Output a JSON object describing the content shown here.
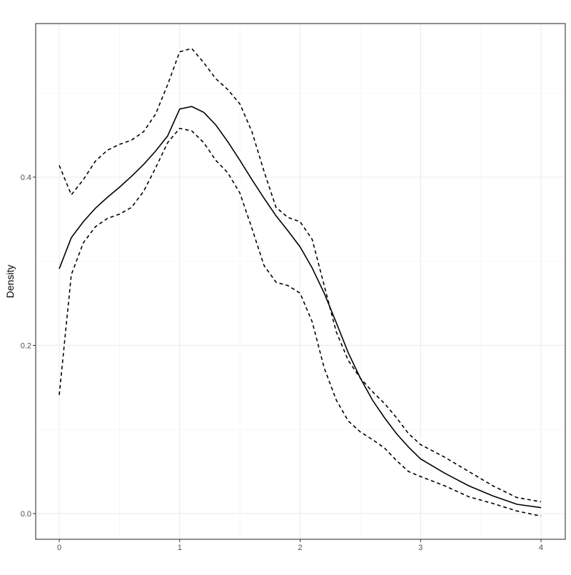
{
  "chart_data": {
    "type": "line",
    "y_label": "Density",
    "x": [
      0,
      0.1,
      0.2,
      0.3,
      0.4,
      0.5,
      0.6,
      0.7,
      0.8,
      0.9,
      1.0,
      1.1,
      1.2,
      1.3,
      1.4,
      1.5,
      1.6,
      1.7,
      1.8,
      1.9,
      2.0,
      2.1,
      2.2,
      2.3,
      2.4,
      2.5,
      2.6,
      2.7,
      2.8,
      2.9,
      3.0,
      3.2,
      3.4,
      3.6,
      3.8,
      4.0
    ],
    "series": [
      {
        "color": "#000000",
        "dash": "solid",
        "values": [
          0.291,
          0.328,
          0.347,
          0.363,
          0.376,
          0.388,
          0.401,
          0.415,
          0.431,
          0.449,
          0.481,
          0.484,
          0.477,
          0.462,
          0.442,
          0.42,
          0.397,
          0.375,
          0.354,
          0.336,
          0.317,
          0.292,
          0.262,
          0.227,
          0.191,
          0.161,
          0.135,
          0.114,
          0.095,
          0.079,
          0.065,
          0.048,
          0.033,
          0.021,
          0.011,
          0.007
        ]
      },
      {
        "color": "#000000",
        "dash": "dashed",
        "values": [
          0.414,
          0.379,
          0.397,
          0.419,
          0.432,
          0.439,
          0.444,
          0.454,
          0.475,
          0.51,
          0.549,
          0.553,
          0.536,
          0.517,
          0.504,
          0.487,
          0.454,
          0.407,
          0.364,
          0.352,
          0.347,
          0.326,
          0.271,
          0.216,
          0.182,
          0.161,
          0.145,
          0.131,
          0.114,
          0.095,
          0.082,
          0.067,
          0.05,
          0.033,
          0.019,
          0.014
        ]
      },
      {
        "color": "#000000",
        "dash": "dashed",
        "values": [
          0.141,
          0.284,
          0.322,
          0.341,
          0.351,
          0.356,
          0.364,
          0.383,
          0.411,
          0.441,
          0.458,
          0.455,
          0.441,
          0.42,
          0.405,
          0.381,
          0.339,
          0.295,
          0.275,
          0.271,
          0.262,
          0.228,
          0.173,
          0.135,
          0.11,
          0.097,
          0.088,
          0.078,
          0.063,
          0.05,
          0.044,
          0.033,
          0.02,
          0.012,
          0.003,
          -0.003
        ]
      }
    ],
    "xlim": [
      -0.1956,
      4.2015
    ],
    "ylim": [
      -0.0306,
      0.5826
    ],
    "xticks": [
      0,
      1,
      2,
      3,
      4
    ],
    "yticks": [
      {
        "value": 0,
        "label": "0.0"
      },
      {
        "value": 0.2,
        "label": "0.2"
      },
      {
        "value": 0.4,
        "label": "0.4"
      }
    ],
    "x_minor_grid": [
      0.5,
      1.5,
      2.5,
      3.5
    ],
    "y_minor_grid": [
      0.1,
      0.3,
      0.5
    ],
    "grid": true
  }
}
